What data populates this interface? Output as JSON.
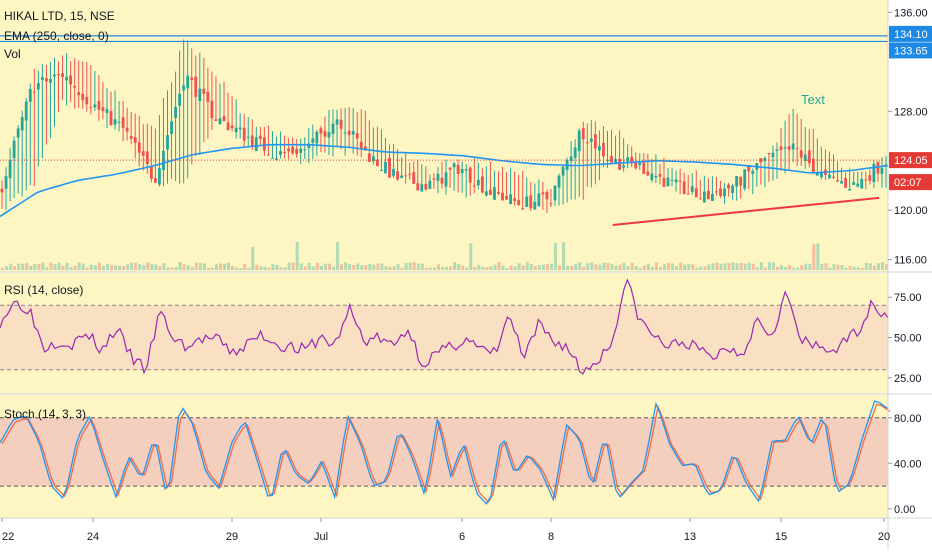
{
  "colors": {
    "bg": "#fdf6c3",
    "up": "#26a69a",
    "down": "#ef5350",
    "ema": "#2196f3",
    "rsi": "#9c27b0",
    "stoch_k": "#2196f3",
    "stoch_d": "#ef6c4a",
    "trend": "#f23645",
    "hline": "#1e88e5",
    "price_line": "#e53935",
    "text_annot": "#26a69a"
  },
  "header": {
    "title": "HIKAL LTD, 15, NSE",
    "ema_label": "EMA (250, close, 0)",
    "vol_label": "Vol",
    "rsi_label": "RSI (14, close)",
    "stoch_label": "Stoch (14, 3, 3)"
  },
  "annotation": {
    "text": "Text"
  },
  "price_axis": {
    "ticks": [
      "136.00",
      "128.00",
      "120.00",
      "116.00"
    ],
    "tags": [
      {
        "value": "134.10",
        "kind": "hline"
      },
      {
        "value": "133.65",
        "kind": "hline"
      },
      {
        "value": "124.05",
        "kind": "last"
      },
      {
        "value": "02:07",
        "kind": "countdown"
      }
    ]
  },
  "rsi_axis": {
    "ticks": [
      "75.00",
      "50.00",
      "25.00"
    ]
  },
  "stoch_axis": {
    "ticks": [
      "80.00",
      "40.00",
      "0.00"
    ]
  },
  "time_axis": {
    "labels": [
      "22",
      "24",
      "29",
      "Jul",
      "6",
      "8",
      "13",
      "15",
      "20"
    ]
  },
  "chart_data": [
    {
      "type": "candlestick",
      "title": "HIKAL LTD, 15, NSE",
      "ylim": [
        115,
        137
      ],
      "horizontal_lines": [
        134.1,
        133.65
      ],
      "last_price": 124.05,
      "ema_label": "EMA (250, close, 0)",
      "ema_path": [
        119.5,
        121.5,
        122.4,
        122.9,
        123.6,
        124.5,
        125.0,
        125.3,
        125.3,
        125.1,
        124.7,
        124.6,
        124.4,
        124.0,
        123.7,
        123.6,
        123.8,
        124.0,
        123.9,
        123.7,
        123.4,
        123.0,
        123.2,
        123.6
      ],
      "candles_ohlc_sample": [
        [
          120.5,
          123.0,
          119.5,
          122.0
        ],
        [
          122.0,
          131.5,
          121.5,
          130.0
        ],
        [
          130.0,
          133.0,
          128.5,
          131.0
        ],
        [
          131.0,
          132.0,
          127.5,
          128.5
        ],
        [
          128.5,
          129.0,
          125.5,
          126.5
        ],
        [
          126.5,
          127.0,
          121.5,
          122.5
        ],
        [
          122.5,
          134.2,
          122.0,
          131.0
        ],
        [
          131.0,
          131.5,
          127.0,
          127.5
        ],
        [
          127.5,
          128.0,
          125.0,
          126.0
        ],
        [
          126.0,
          126.5,
          124.0,
          124.5
        ],
        [
          124.5,
          126.5,
          123.5,
          125.0
        ],
        [
          125.0,
          128.8,
          124.5,
          127.5
        ],
        [
          127.5,
          128.0,
          124.0,
          124.5
        ],
        [
          124.5,
          125.0,
          122.0,
          122.5
        ],
        [
          122.5,
          123.5,
          121.5,
          122.0
        ],
        [
          122.0,
          124.5,
          121.0,
          123.5
        ],
        [
          123.5,
          124.0,
          121.0,
          121.5
        ],
        [
          121.5,
          123.5,
          120.0,
          120.5
        ],
        [
          120.5,
          122.0,
          119.5,
          121.0
        ],
        [
          121.0,
          127.5,
          120.5,
          126.5
        ],
        [
          126.5,
          127.0,
          123.5,
          124.0
        ],
        [
          124.0,
          125.0,
          122.5,
          123.5
        ],
        [
          123.5,
          124.0,
          121.5,
          122.0
        ],
        [
          122.0,
          123.0,
          120.5,
          121.0
        ],
        [
          121.0,
          122.5,
          120.5,
          122.0
        ],
        [
          122.0,
          124.5,
          121.5,
          124.0
        ],
        [
          124.0,
          128.5,
          123.5,
          125.0
        ],
        [
          125.0,
          125.5,
          122.0,
          122.5
        ],
        [
          122.5,
          123.0,
          121.5,
          122.0
        ],
        [
          122.0,
          125.0,
          121.5,
          124.05
        ]
      ],
      "trendline": [
        [
          118.8
        ],
        [
          121.0
        ]
      ]
    },
    {
      "type": "line",
      "title": "RSI (14, close)",
      "ylim": [
        15,
        90
      ],
      "levels": [
        70,
        30
      ],
      "values": [
        60,
        72,
        68,
        44,
        48,
        46,
        52,
        42,
        56,
        38,
        30,
        66,
        48,
        44,
        50,
        48,
        40,
        46,
        52,
        46,
        44,
        42,
        50,
        45,
        68,
        48,
        50,
        44,
        56,
        34,
        40,
        44,
        50,
        42,
        40,
        64,
        36,
        58,
        48,
        44,
        28,
        36,
        46,
        86,
        60,
        50,
        44,
        48,
        42,
        38,
        44,
        40,
        62,
        52,
        78,
        48,
        44,
        42,
        46,
        56,
        72,
        62
      ]
    },
    {
      "type": "line",
      "title": "Stoch (14, 3, 3)",
      "ylim": [
        -8,
        100
      ],
      "levels": [
        80,
        20
      ],
      "series": [
        {
          "values": [
            58,
            78,
            82,
            60,
            20,
            8,
            62,
            82,
            44,
            10,
            46,
            26,
            64,
            8,
            92,
            74,
            32,
            18,
            58,
            78,
            42,
            4,
            56,
            30,
            22,
            42,
            10,
            82,
            58,
            20,
            24,
            70,
            46,
            12,
            80,
            28,
            58,
            14,
            2,
            66,
            30,
            48,
            34,
            8,
            74,
            62,
            18,
            66,
            8,
            22,
            34,
            94,
            58,
            38,
            40,
            12,
            16,
            50,
            22,
            6,
            60,
            60,
            82,
            56,
            84,
            14,
            22,
            62,
            96,
            88
          ]
        }
      ]
    }
  ]
}
